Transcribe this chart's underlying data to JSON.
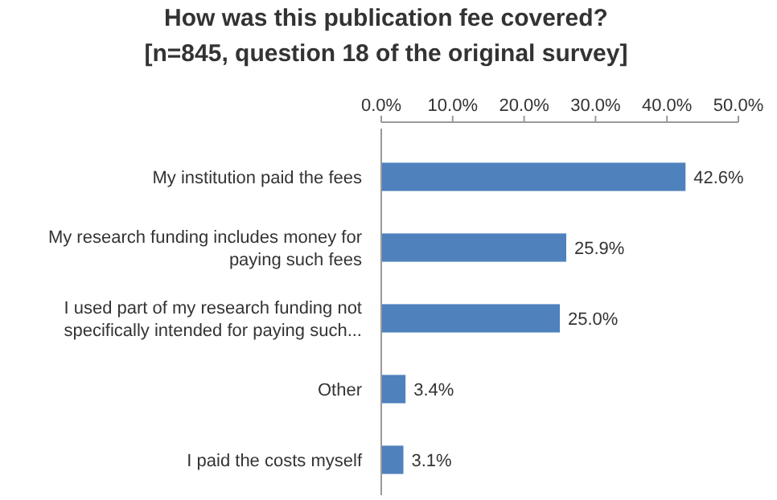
{
  "chart_data": {
    "type": "bar",
    "orientation": "horizontal",
    "title": "How was this publication fee covered?\n[n=845, question 18 of the original survey]",
    "categories": [
      "My institution paid the fees",
      "My research funding includes money for paying such fees",
      "I used part of my research funding not specifically intended for paying such...",
      "Other",
      "I paid the costs myself"
    ],
    "values": [
      42.6,
      25.9,
      25.0,
      3.4,
      3.1
    ],
    "value_labels": [
      "42.6%",
      "25.9%",
      "25.0%",
      "3.4%",
      "3.1%"
    ],
    "color": "#4f81bd",
    "xlim": [
      0,
      50
    ],
    "xticks": [
      {
        "value": 0,
        "label": "0.0%"
      },
      {
        "value": 10,
        "label": "10.0%"
      },
      {
        "value": 20,
        "label": "20.0%"
      },
      {
        "value": 30,
        "label": "30.0%"
      },
      {
        "value": 40,
        "label": "40.0%"
      },
      {
        "value": 50,
        "label": "50.0%"
      }
    ],
    "grid": false
  }
}
